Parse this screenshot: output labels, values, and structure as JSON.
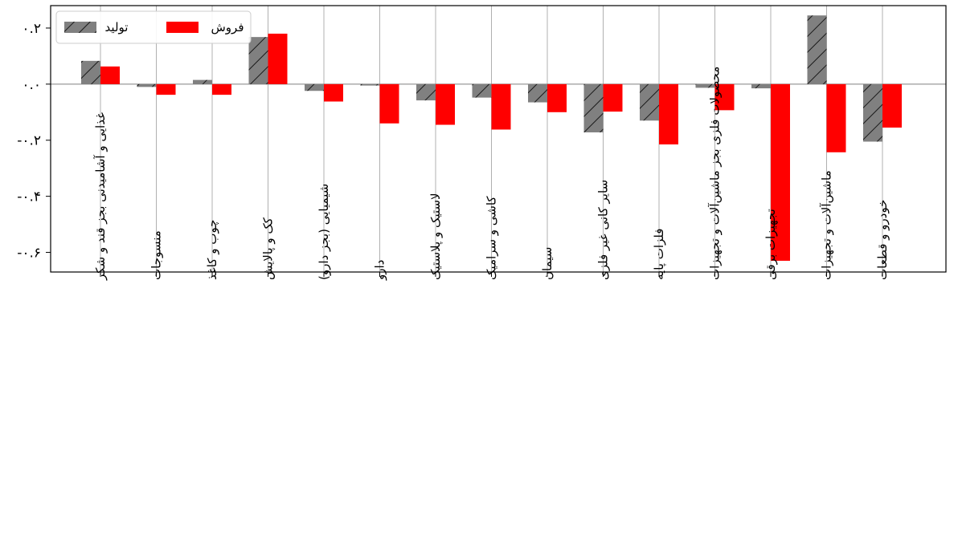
{
  "chart_data": {
    "type": "bar",
    "categories": [
      "غذایی و آشامیدنی بجز قند و شکر",
      "منسوجات",
      "چوب و کاغذ",
      "کک و پالایش",
      "شیمیایی (بجز دارو)",
      "دارو",
      "لاستیک و پلاستیک",
      "کاشی و سرامیک",
      "سیمان",
      "سایر کانی غیر فلزی",
      "فلزات پایه",
      "محصولات فلزی بجز ماشین‌آلات و تجهیزات",
      "تجهیزات برقی",
      "ماشین‌آلات و تجهیزات",
      "خودرو و قطعات"
    ],
    "series": [
      {
        "name": "تولید",
        "color": "#808080",
        "pattern": "hatch",
        "values": [
          0.083,
          -0.01,
          0.015,
          0.168,
          -0.024,
          -0.005,
          -0.058,
          -0.048,
          -0.065,
          -0.172,
          -0.13,
          -0.013,
          -0.015,
          0.245,
          -0.205
        ]
      },
      {
        "name": "فروش",
        "color": "#ff0000",
        "pattern": "solid",
        "values": [
          0.063,
          -0.038,
          -0.038,
          0.18,
          -0.062,
          -0.14,
          -0.145,
          -0.162,
          -0.1,
          -0.098,
          -0.215,
          -0.093,
          -0.63,
          -0.243,
          -0.155
        ]
      }
    ],
    "y_ticks": [
      {
        "value": 0.2,
        "label": "۰.۲"
      },
      {
        "value": 0.0,
        "label": "۰.۰"
      },
      {
        "value": -0.2,
        "label": "-۰.۲"
      },
      {
        "value": -0.4,
        "label": "-۰.۴"
      },
      {
        "value": -0.6,
        "label": "-۰.۶"
      }
    ],
    "ylim": [
      -0.67,
      0.28
    ],
    "grid": "x",
    "zero_line": true,
    "legend": "top-left"
  }
}
